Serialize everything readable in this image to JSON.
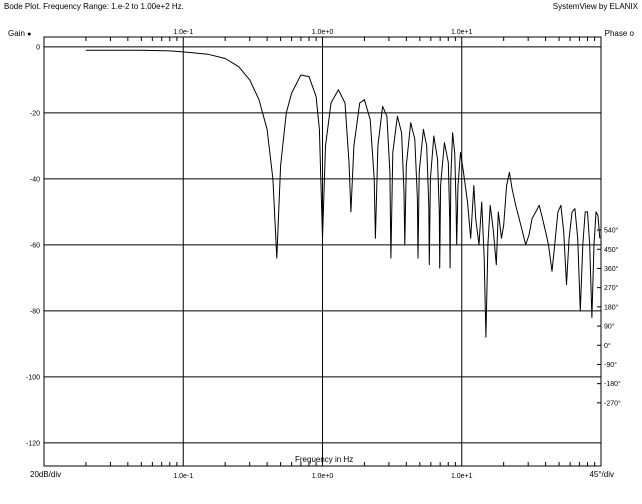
{
  "header": {
    "title": "Bode Plot.  Frequency Range: 1.e-2 to 1.00e+2 Hz.",
    "brand": "SystemView by ELANIX"
  },
  "legend": {
    "gain_label": "Gain",
    "gain_marker": "●",
    "phase_label": "Phase",
    "phase_marker": "o"
  },
  "footer": {
    "left_scale": "20dB/div",
    "right_scale": "45°/div"
  },
  "chart_data": {
    "type": "line",
    "title": "Bode Plot.  Frequency Range: 1.e-2 to 1.00e+2 Hz.",
    "xlabel": "Frequency in Hz",
    "ylabel": "Gain",
    "x_scale": "log",
    "xlim": [
      0.01,
      100
    ],
    "ylim": [
      -127,
      3
    ],
    "grid": true,
    "x_ticks": [
      {
        "value": 0.1,
        "label": "1.0e-1"
      },
      {
        "value": 1,
        "label": "1.0e+0"
      },
      {
        "value": 10,
        "label": "1.0e+1"
      }
    ],
    "y_ticks": [
      {
        "value": 0,
        "label": "0"
      },
      {
        "value": -20,
        "label": "-20"
      },
      {
        "value": -40,
        "label": "-40"
      },
      {
        "value": -60,
        "label": "-60"
      },
      {
        "value": -80,
        "label": "-80"
      },
      {
        "value": -100,
        "label": "-100"
      },
      {
        "value": -120,
        "label": "-120"
      }
    ],
    "phase_axis": {
      "unit": "degrees",
      "scale_label": "45°/div",
      "ticks": [
        {
          "value": 540,
          "label": "540°"
        },
        {
          "value": 450,
          "label": "450°"
        },
        {
          "value": 360,
          "label": "360°"
        },
        {
          "value": 270,
          "label": "270°"
        },
        {
          "value": 180,
          "label": "180°"
        },
        {
          "value": 90,
          "label": "90°"
        },
        {
          "value": 0,
          "label": "0°"
        },
        {
          "value": -90,
          "label": "-90°"
        },
        {
          "value": -180,
          "label": "-180°"
        },
        {
          "value": -270,
          "label": "-270°"
        }
      ]
    },
    "series": [
      {
        "key": "gain",
        "color": "#000000",
        "points": [
          [
            0.02,
            -1.0
          ],
          [
            0.03,
            -1.0
          ],
          [
            0.05,
            -1.0
          ],
          [
            0.08,
            -1.2
          ],
          [
            0.1,
            -1.5
          ],
          [
            0.15,
            -2.2
          ],
          [
            0.2,
            -3.5
          ],
          [
            0.25,
            -6
          ],
          [
            0.3,
            -10
          ],
          [
            0.35,
            -16
          ],
          [
            0.4,
            -25
          ],
          [
            0.44,
            -40
          ],
          [
            0.47,
            -64
          ],
          [
            0.5,
            -36
          ],
          [
            0.55,
            -20
          ],
          [
            0.6,
            -14
          ],
          [
            0.7,
            -8.5
          ],
          [
            0.8,
            -9
          ],
          [
            0.9,
            -15
          ],
          [
            0.95,
            -25
          ],
          [
            1.0,
            -58
          ],
          [
            1.05,
            -30
          ],
          [
            1.15,
            -17
          ],
          [
            1.3,
            -13
          ],
          [
            1.45,
            -17
          ],
          [
            1.55,
            -35
          ],
          [
            1.6,
            -50
          ],
          [
            1.68,
            -30
          ],
          [
            1.85,
            -17
          ],
          [
            2.0,
            -16
          ],
          [
            2.2,
            -22
          ],
          [
            2.35,
            -40
          ],
          [
            2.4,
            -58
          ],
          [
            2.5,
            -30
          ],
          [
            2.7,
            -18
          ],
          [
            2.9,
            -21
          ],
          [
            3.05,
            -38
          ],
          [
            3.1,
            -64
          ],
          [
            3.2,
            -32
          ],
          [
            3.45,
            -21
          ],
          [
            3.7,
            -26
          ],
          [
            3.85,
            -44
          ],
          [
            3.9,
            -60
          ],
          [
            4.0,
            -36
          ],
          [
            4.3,
            -23
          ],
          [
            4.6,
            -28
          ],
          [
            4.8,
            -46
          ],
          [
            4.85,
            -64
          ],
          [
            4.95,
            -38
          ],
          [
            5.3,
            -25
          ],
          [
            5.6,
            -30
          ],
          [
            5.8,
            -48
          ],
          [
            5.85,
            -66
          ],
          [
            5.95,
            -40
          ],
          [
            6.3,
            -27
          ],
          [
            6.7,
            -34
          ],
          [
            6.9,
            -50
          ],
          [
            6.95,
            -67
          ],
          [
            7.05,
            -42
          ],
          [
            7.5,
            -29
          ],
          [
            8.0,
            -35
          ],
          [
            8.2,
            -52
          ],
          [
            8.25,
            -67
          ],
          [
            8.35,
            -40
          ],
          [
            8.6,
            -26
          ],
          [
            8.9,
            -32
          ],
          [
            9.1,
            -47
          ],
          [
            9.2,
            -60
          ],
          [
            9.4,
            -42
          ],
          [
            9.8,
            -32
          ],
          [
            10.3,
            -38
          ],
          [
            11.0,
            -47
          ],
          [
            11.6,
            -58
          ],
          [
            12.2,
            -42
          ],
          [
            12.6,
            -52
          ],
          [
            13.3,
            -60
          ],
          [
            13.9,
            -47
          ],
          [
            14.5,
            -64
          ],
          [
            14.9,
            -88
          ],
          [
            15.4,
            -60
          ],
          [
            16.0,
            -48
          ],
          [
            16.8,
            -55
          ],
          [
            17.7,
            -66
          ],
          [
            18.3,
            -50
          ],
          [
            19.3,
            -58
          ],
          [
            20.0,
            -54
          ],
          [
            21.0,
            -42
          ],
          [
            22.0,
            -38
          ],
          [
            23.0,
            -43
          ],
          [
            24.4,
            -48
          ],
          [
            25.8,
            -52
          ],
          [
            27.3,
            -56
          ],
          [
            28.8,
            -60
          ],
          [
            30.4,
            -57
          ],
          [
            32.0,
            -52
          ],
          [
            34.0,
            -50
          ],
          [
            36.0,
            -48
          ],
          [
            38.0,
            -52
          ],
          [
            40.0,
            -56
          ],
          [
            42.0,
            -60
          ],
          [
            44.5,
            -68
          ],
          [
            46.5,
            -60
          ],
          [
            49.0,
            -50
          ],
          [
            51.5,
            -48
          ],
          [
            54.0,
            -56
          ],
          [
            56.5,
            -72
          ],
          [
            59.0,
            -58
          ],
          [
            62.0,
            -50
          ],
          [
            65.0,
            -49
          ],
          [
            68.0,
            -58
          ],
          [
            71.0,
            -80
          ],
          [
            74.0,
            -60
          ],
          [
            77.0,
            -50
          ],
          [
            80.0,
            -50
          ],
          [
            83.0,
            -60
          ],
          [
            86.0,
            -82
          ],
          [
            89.0,
            -60
          ],
          [
            92.0,
            -50
          ],
          [
            95.0,
            -51
          ],
          [
            98.0,
            -58
          ]
        ]
      }
    ]
  }
}
